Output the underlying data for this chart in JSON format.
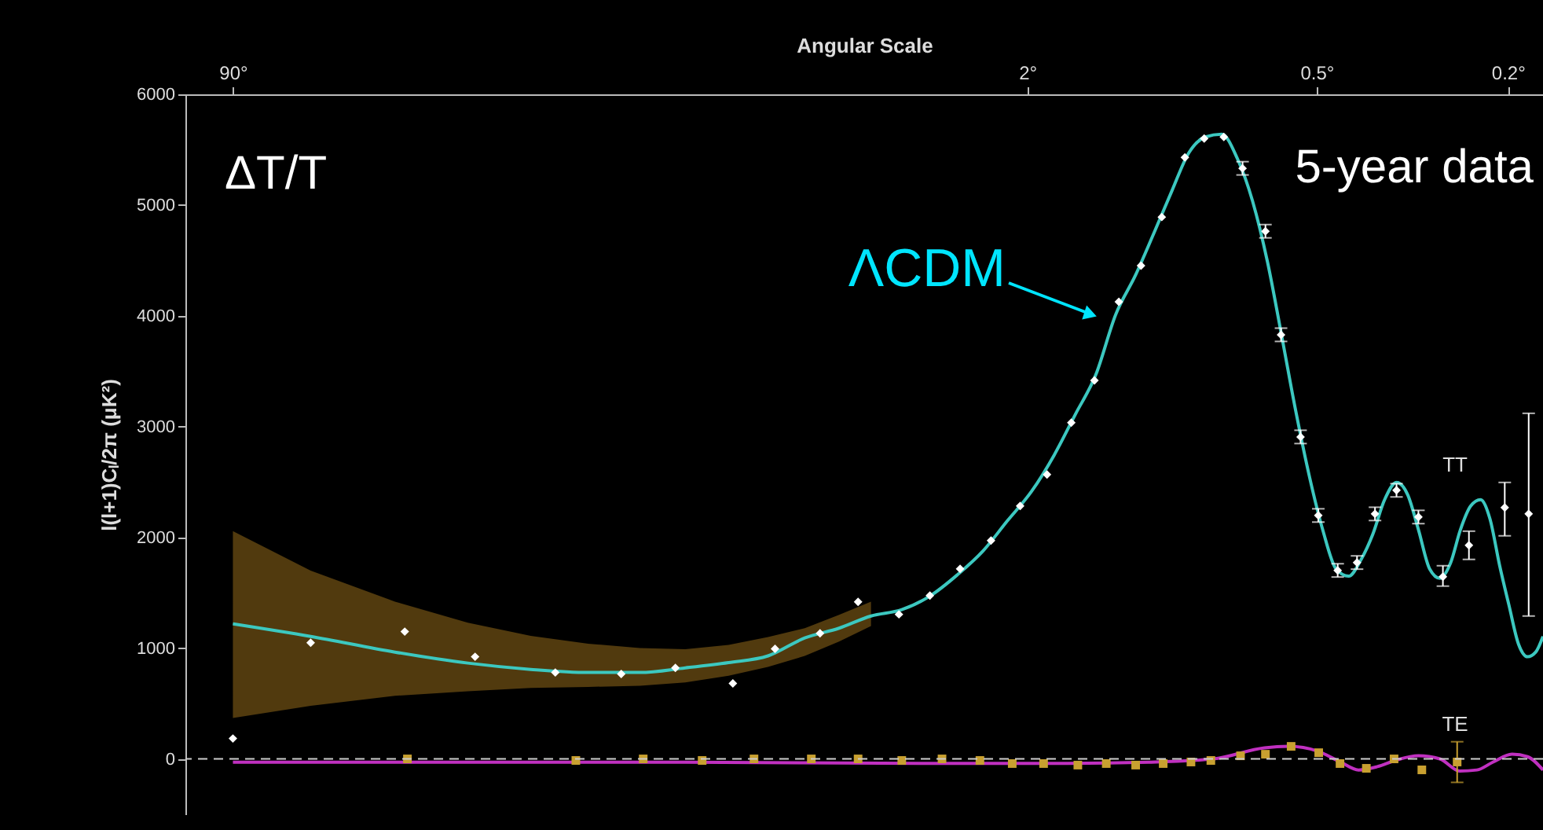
{
  "chart_data": {
    "type": "line",
    "xlabel": "Angular Scale",
    "ylabel": "l(l+1)Cₗ/2π (μK²)",
    "log": "x",
    "xlim": [
      113,
      0.169
    ],
    "xticks": [
      {
        "value": 90,
        "label": "90°"
      },
      {
        "value": 2,
        "label": "2°"
      },
      {
        "value": 0.5,
        "label": "0.5°"
      },
      {
        "value": 0.2,
        "label": "0.2°"
      }
    ],
    "ylim": [
      -500,
      6000
    ],
    "yticks": [
      0,
      1000,
      2000,
      3000,
      4000,
      5000,
      6000
    ],
    "grid": false,
    "series": [
      {
        "color": "#3cc8c0",
        "x": [
          90,
          62,
          41.4,
          29.2,
          21.6,
          16.4,
          12.8,
          10.3,
          8.37,
          6.93,
          5.81,
          4.93,
          4.23,
          3.65,
          3.19,
          2.8,
          2.47,
          2.2,
          1.96,
          1.76,
          1.59,
          1.44,
          1.31,
          1.19,
          1.092,
          1.0,
          0.923,
          0.852,
          0.788,
          0.731,
          0.679,
          0.633,
          0.59,
          0.552,
          0.517,
          0.485,
          0.456,
          0.429,
          0.404,
          0.382,
          0.361,
          0.341,
          0.323,
          0.307,
          0.291,
          0.277,
          0.263,
          0.251,
          0.239,
          0.228,
          0.218,
          0.208,
          0.199,
          0.19,
          0.182,
          0.175,
          0.169
        ],
        "values": [
          1220,
          1106,
          964,
          865,
          808,
          780,
          780,
          822,
          870,
          930,
          1092,
          1180,
          1290,
          1347,
          1470,
          1660,
          1880,
          2150,
          2415,
          2740,
          3108,
          3470,
          4010,
          4370,
          4740,
          5130,
          5470,
          5615,
          5640,
          5420,
          5030,
          4490,
          3800,
          3130,
          2540,
          2060,
          1718,
          1650,
          1800,
          2028,
          2340,
          2496,
          2382,
          2070,
          1716,
          1631,
          1773,
          2070,
          2283,
          2340,
          2170,
          1744,
          1390,
          1035,
          922,
          964,
          1106
        ],
        "lower": [
          369,
          480,
          570,
          610,
          640,
          650,
          660,
          690,
          750,
          830,
          930,
          1060,
          1200,
          null,
          null,
          null,
          null,
          null,
          null,
          null,
          null,
          null,
          null,
          null,
          null,
          null,
          null,
          null,
          null,
          null,
          null,
          null,
          null,
          null,
          null,
          null,
          null,
          null,
          null,
          null,
          null,
          null,
          null,
          null,
          null,
          null,
          null,
          null,
          null,
          null,
          null,
          null,
          null,
          null,
          null,
          null,
          null
        ],
        "upper": [
          2056,
          1700,
          1420,
          1230,
          1110,
          1040,
          1000,
          990,
          1030,
          1100,
          1180,
          1300,
          1420,
          null,
          null,
          null,
          null,
          null,
          null,
          null,
          null,
          null,
          null,
          null,
          null,
          null,
          null,
          null,
          null,
          null,
          null,
          null,
          null,
          null,
          null,
          null,
          null,
          null,
          null,
          null,
          null,
          null,
          null,
          null,
          null,
          null,
          null,
          null,
          null,
          null,
          null,
          null,
          null,
          null,
          null,
          null,
          null
        ]
      },
      {
        "type": "scatter",
        "color": "#ffffff",
        "marker": "diamond",
        "x": [
          90,
          62,
          39.5,
          28.2,
          19.2,
          14.0,
          10.8,
          8.2,
          6.7,
          5.4,
          4.5,
          3.7,
          3.19,
          2.76,
          2.38,
          2.07,
          1.82,
          1.62,
          1.45,
          1.29,
          1.16,
          1.05,
          0.94,
          0.857,
          0.78,
          0.713,
          0.639,
          0.593,
          0.54,
          0.496,
          0.452,
          0.412,
          0.378,
          0.341,
          0.307,
          0.273,
          0.241,
          0.203,
          0.181
        ],
        "values": [
          184,
          1049,
          1149,
          922,
          780,
          766,
          822,
          681,
          993,
          1134,
          1418,
          1305,
          1475,
          1716,
          1971,
          2283,
          2567,
          3035,
          3417,
          4126,
          4453,
          4892,
          5431,
          5601,
          5615,
          5332,
          4764,
          3829,
          2907,
          2198,
          1702,
          1773,
          2212,
          2425,
          2184,
          1645,
          1929,
          2269,
          2212
        ],
        "errors": [
          null,
          null,
          null,
          null,
          null,
          null,
          null,
          null,
          null,
          null,
          null,
          null,
          null,
          null,
          null,
          null,
          null,
          null,
          null,
          null,
          null,
          null,
          null,
          null,
          null,
          60,
          60,
          60,
          60,
          60,
          60,
          60,
          60,
          60,
          60,
          [
            1560,
            1744
          ],
          [
            1801,
            2056
          ],
          [
            2014,
            2496
          ],
          [
            1290,
            3120
          ]
        ]
      },
      {
        "color": "#c030c0",
        "x": [
          90,
          10.3,
          3.33,
          1.65,
          1.12,
          0.82,
          0.642,
          0.571,
          0.498,
          0.446,
          0.409,
          0.374,
          0.341,
          0.307,
          0.277,
          0.252,
          0.232,
          0.215,
          0.196,
          0.182,
          0.169
        ],
        "values": [
          -30,
          -30,
          -40,
          -40,
          -30,
          0,
          100,
          113,
          70,
          -28,
          -100,
          -70,
          -10,
          28,
          0,
          -110,
          -100,
          -30,
          42,
          20,
          -100
        ]
      },
      {
        "type": "scatter",
        "color": "#c8a030",
        "marker": "square",
        "x": [
          39.0,
          17.4,
          12.6,
          9.5,
          7.41,
          5.63,
          4.5,
          3.65,
          3.01,
          2.51,
          2.15,
          1.85,
          1.57,
          1.37,
          1.19,
          1.043,
          0.913,
          0.83,
          0.72,
          0.639,
          0.565,
          0.495,
          0.447,
          0.394,
          0.345,
          0.302,
          0.255
        ],
        "values": [
          0,
          -14,
          0,
          -14,
          0,
          0,
          0,
          -14,
          0,
          -14,
          -42,
          -42,
          -56,
          -42,
          -56,
          -42,
          -28,
          -14,
          28,
          42,
          113,
          56,
          -42,
          -85,
          0,
          -99,
          -28
        ],
        "errors": [
          null,
          null,
          null,
          null,
          null,
          null,
          null,
          null,
          null,
          null,
          null,
          null,
          null,
          null,
          null,
          null,
          null,
          null,
          null,
          null,
          null,
          null,
          null,
          null,
          null,
          null,
          [
            -212,
            155
          ]
        ]
      }
    ],
    "ref_lines": [
      {
        "axis": "y",
        "value": 0,
        "color": "#cccccc",
        "line_style": "dashed"
      }
    ],
    "annotations": [
      "ΔT/T",
      "5-year data",
      "ΛCDM",
      "TT",
      "TE"
    ]
  }
}
